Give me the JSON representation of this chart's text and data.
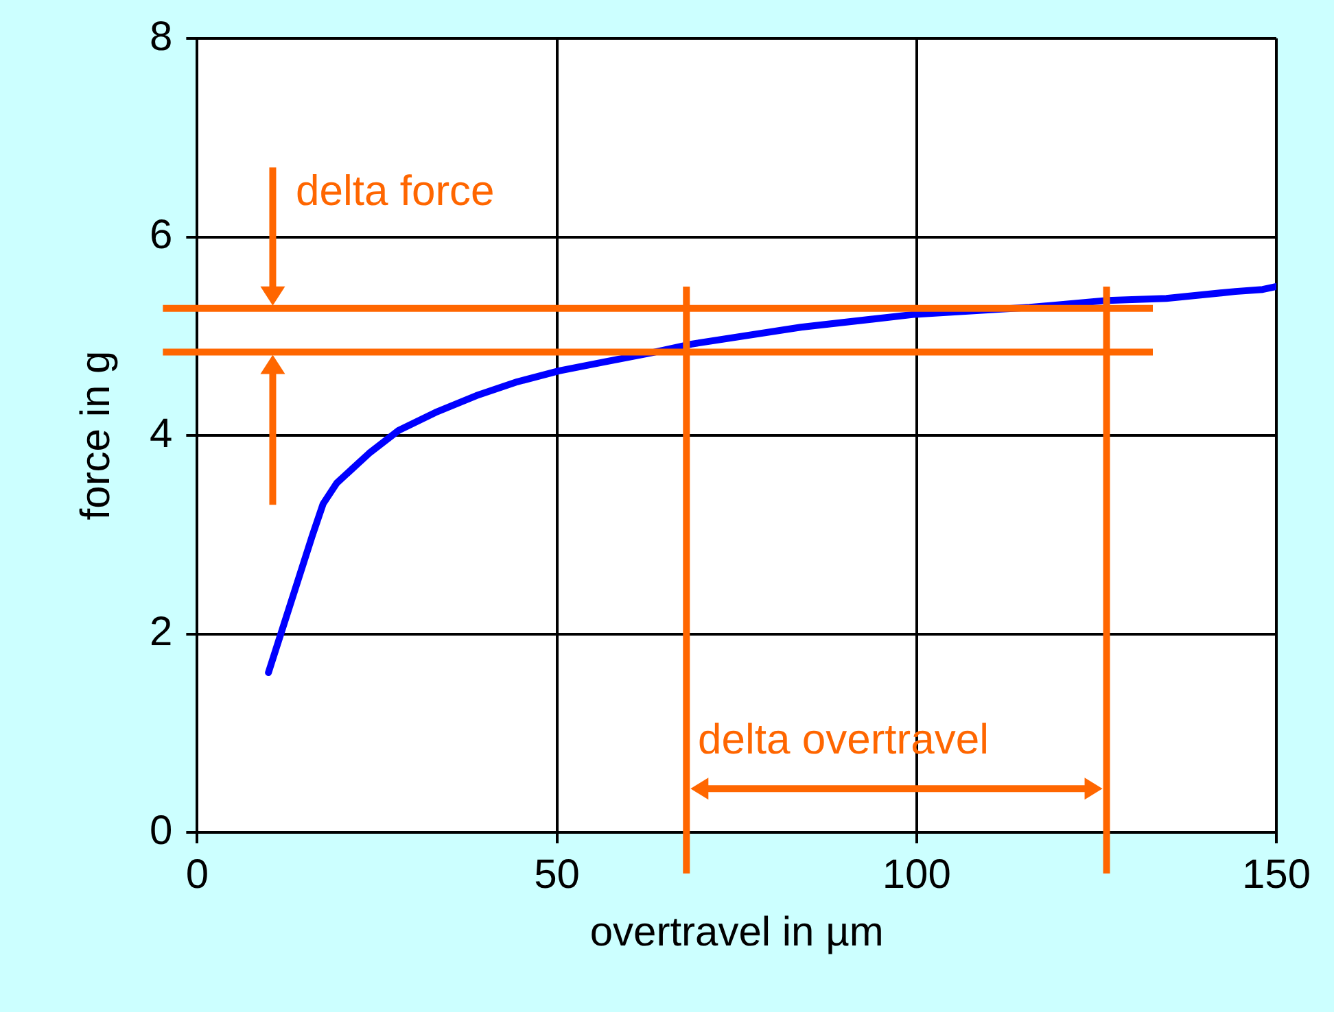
{
  "chart_data": {
    "type": "line",
    "xlabel": "overtravel in µm",
    "ylabel": "force in g",
    "x": [
      9.9,
      16.0,
      17.5,
      19.4,
      23.9,
      28.0,
      33.1,
      38.8,
      44.5,
      50.3,
      56.6,
      63.0,
      68.7,
      83.9,
      99.8,
      115.7,
      126.5,
      134.7,
      144.3,
      148.1,
      150
    ],
    "series": [
      {
        "color": "#0000ff",
        "values": [
          1.61,
          2.99,
          3.31,
          3.52,
          3.82,
          4.05,
          4.23,
          4.4,
          4.54,
          4.65,
          4.74,
          4.83,
          4.92,
          5.09,
          5.22,
          5.29,
          5.36,
          5.38,
          5.45,
          5.47,
          5.5
        ]
      }
    ],
    "xlim": [
      0,
      150
    ],
    "xticks": [
      0,
      50,
      100,
      150
    ],
    "ylim": [
      0,
      8
    ],
    "yticks": [
      0,
      2,
      4,
      6,
      8
    ],
    "grid": true,
    "marker": "none",
    "line_style": "solid",
    "ref_lines": [
      {
        "axis": "y",
        "value": 5.28,
        "color": "#ff6600"
      },
      {
        "axis": "y",
        "value": 4.84,
        "color": "#ff6600"
      },
      {
        "axis": "x",
        "value": 68,
        "color": "#ff6600"
      },
      {
        "axis": "x",
        "value": 126.4,
        "color": "#ff6600"
      }
    ],
    "annotations": [
      "delta force",
      "delta overtravel"
    ]
  }
}
